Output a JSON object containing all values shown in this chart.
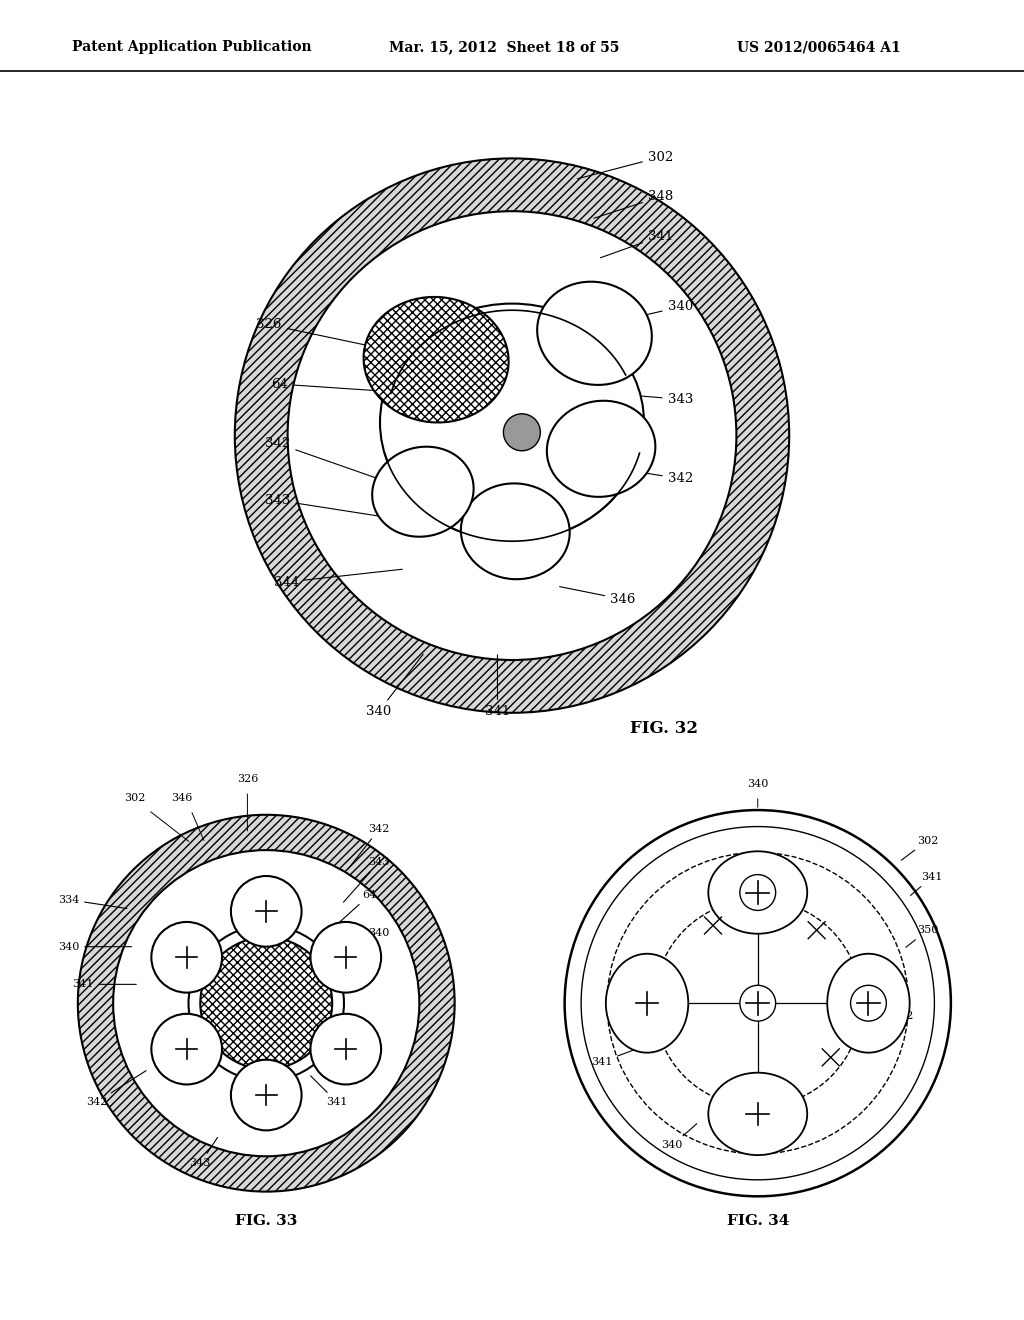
{
  "header_left": "Patent Application Publication",
  "header_mid": "Mar. 15, 2012  Sheet 18 of 55",
  "header_right": "US 2012/0065464 A1",
  "fig32_label": "FIG. 32",
  "fig33_label": "FIG. 33",
  "fig34_label": "FIG. 34",
  "background_color": "#ffffff",
  "line_color": "#000000",
  "hatch_color": "#000000"
}
